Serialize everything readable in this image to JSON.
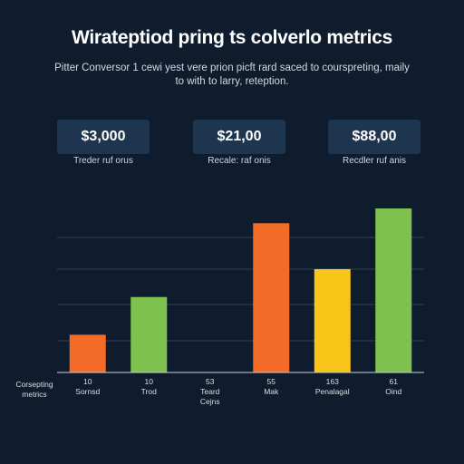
{
  "header": {
    "title": "Wirateptiod pring ts colverlo metrics",
    "subtitle": "Pitter Conversor 1 cewi yest vere prion picft rard saced to courspreting, maily to with to larry, reteption."
  },
  "kpis": [
    {
      "value": "$3,000",
      "label": "Treder ruf orus"
    },
    {
      "value": "$21,00",
      "label": "Recale: raf onis"
    },
    {
      "value": "$88,00",
      "label": "Recdler ruf anis"
    }
  ],
  "chart_data": {
    "type": "bar",
    "y_axis_label": [
      "Corsepting",
      "metrics"
    ],
    "ylim": [
      0,
      100
    ],
    "grid": true,
    "categories": [
      {
        "top": "10",
        "bottom": [
          "Sornsd"
        ]
      },
      {
        "top": "10",
        "bottom": [
          "Trod"
        ]
      },
      {
        "top": "53",
        "bottom": [
          "Teard",
          "Cejns"
        ]
      },
      {
        "top": "55",
        "bottom": [
          "Mak"
        ]
      },
      {
        "top": "163",
        "bottom": [
          "Penalagal"
        ]
      },
      {
        "top": "61",
        "bottom": [
          "Oind"
        ]
      }
    ],
    "values": [
      23,
      46,
      0,
      91,
      63,
      100
    ],
    "colors": [
      "#f26b27",
      "#7ec14e",
      "#f26b27",
      "#f26b27",
      "#f7c618",
      "#7ec14e"
    ]
  }
}
